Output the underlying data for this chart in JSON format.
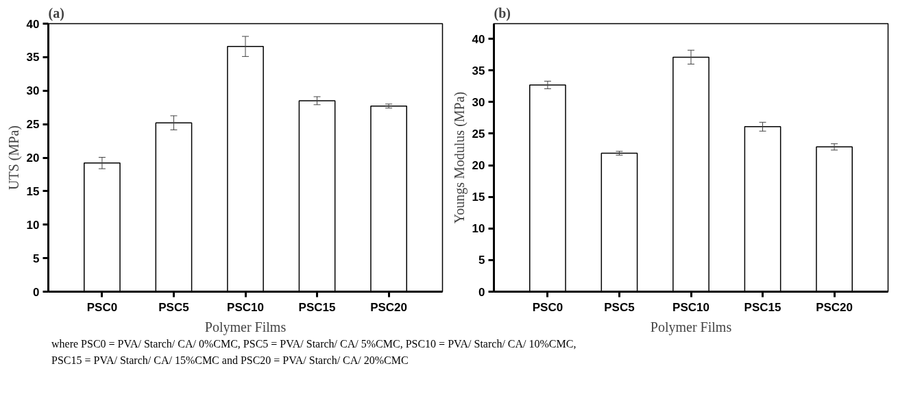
{
  "chart_data": [
    {
      "type": "bar",
      "title": "(a)",
      "xlabel": "Polymer Films",
      "ylabel": "UTS (MPa)",
      "categories": [
        "PSC0",
        "PSC5",
        "PSC10",
        "PSC15",
        "PSC20"
      ],
      "series": [
        {
          "color": "#ffffff",
          "values": [
            19.2,
            25.2,
            36.6,
            28.5,
            27.7
          ],
          "errors": [
            0.85,
            1.05,
            1.5,
            0.6,
            0.3
          ]
        }
      ],
      "ylim": [
        0,
        40
      ],
      "yticks": [
        0,
        5,
        10,
        15,
        20,
        25,
        30,
        35,
        40
      ],
      "grid": false,
      "annotations": [
        "where PSC0 = PVA/ Starch/ CA/ 0%CMC, PSC5 = PVA/ Starch/ CA/ 5%CMC, PSC10 = PVA/ Starch/ CA/ 10%CMC,",
        "PSC15 = PVA/ Starch/ CA/ 15%CMC and PSC20 = PVA/ Starch/ CA/ 20%CMC"
      ]
    },
    {
      "type": "bar",
      "title": "(b)",
      "xlabel": "Polymer Films",
      "ylabel": "Youngs Modulus (MPa)",
      "categories": [
        "PSC0",
        "PSC5",
        "PSC10",
        "PSC15",
        "PSC20"
      ],
      "series": [
        {
          "color": "#ffffff",
          "values": [
            32.7,
            21.9,
            37.1,
            26.1,
            22.9
          ],
          "errors": [
            0.6,
            0.3,
            1.1,
            0.7,
            0.5
          ]
        }
      ],
      "ylim": [
        0,
        42.4
      ],
      "yticks": [
        0,
        5,
        10,
        15,
        20,
        25,
        30,
        35,
        40
      ],
      "grid": false
    }
  ]
}
